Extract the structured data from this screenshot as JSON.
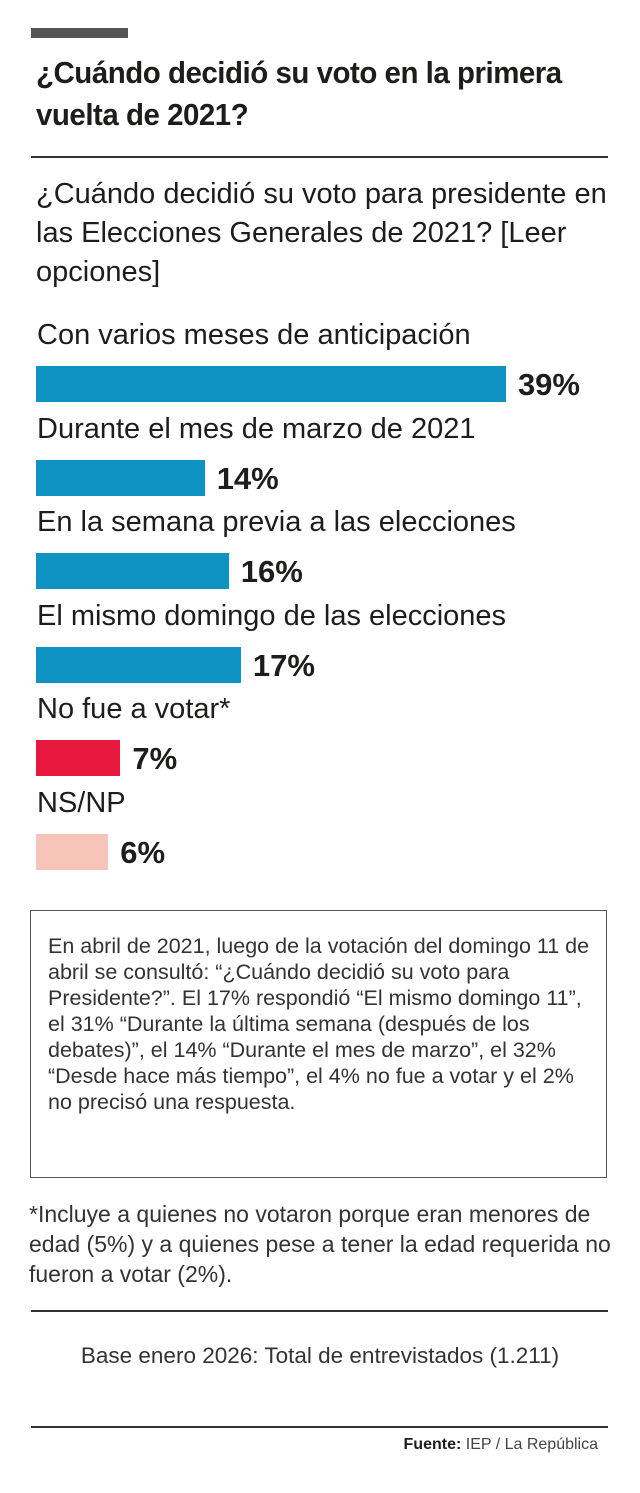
{
  "title": "¿Cuándo decidió su voto en la primera vuelta de 2021?",
  "question": "¿Cuándo decidió su voto para presidente en las Elecciones Generales de 2021? [Leer opciones]",
  "chart_data": {
    "type": "bar",
    "orientation": "horizontal",
    "categories": [
      "Con varios meses de anticipación",
      "Durante el mes de marzo de 2021",
      "En la semana previa a las elecciones",
      "El mismo domingo de las elecciones",
      "No fue a votar*",
      "NS/NP"
    ],
    "values": [
      39,
      14,
      16,
      17,
      7,
      6
    ],
    "labels": [
      "39%",
      "14%",
      "16%",
      "17%",
      "7%",
      "6%"
    ],
    "colors": [
      "#0f93c3",
      "#0f93c3",
      "#0f93c3",
      "#0f93c3",
      "#e8193c",
      "#f6c4b8"
    ],
    "unit": "%",
    "grid": false
  },
  "note": "En abril de 2021, luego de la votación del domingo 11 de abril se consultó: “¿Cuándo decidió su voto para Presidente?”. El 17% respondió “El mismo domingo 11”, el 31% “Durante la última semana (después de los debates)”, el 14% “Durante el mes de marzo”, el 32% “Desde hace más tiempo”, el 4% no fue a votar y el 2% no precisó una respuesta.",
  "footnote": "*Incluye a quienes no votaron porque eran menores de edad (5%) y a quienes pese a tener la edad requerida no fueron a votar (2%).",
  "base": "Base enero 2026: Total de entrevistados (1.211)",
  "source": {
    "label": "Fuente:",
    "text": " IEP / La República"
  }
}
